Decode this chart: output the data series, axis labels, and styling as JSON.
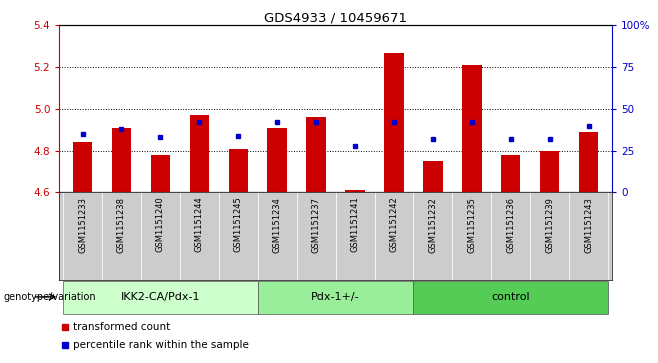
{
  "title": "GDS4933 / 10459671",
  "samples": [
    "GSM1151233",
    "GSM1151238",
    "GSM1151240",
    "GSM1151244",
    "GSM1151245",
    "GSM1151234",
    "GSM1151237",
    "GSM1151241",
    "GSM1151242",
    "GSM1151232",
    "GSM1151235",
    "GSM1151236",
    "GSM1151239",
    "GSM1151243"
  ],
  "red_values": [
    4.84,
    4.91,
    4.78,
    4.97,
    4.81,
    4.91,
    4.96,
    4.61,
    5.27,
    4.75,
    5.21,
    4.78,
    4.8,
    4.89
  ],
  "blue_values_pct": [
    35,
    38,
    33,
    42,
    34,
    42,
    42,
    28,
    42,
    32,
    42,
    32,
    32,
    40
  ],
  "ymin": 4.6,
  "ymax": 5.4,
  "y_ticks_left": [
    4.6,
    4.8,
    5.0,
    5.2,
    5.4
  ],
  "y_ticks_right": [
    0,
    25,
    50,
    75,
    100
  ],
  "bar_color": "#cc0000",
  "blue_color": "#0000cc",
  "bar_width": 0.5,
  "tick_bg_color": "#cccccc",
  "red_axis_color": "#cc0000",
  "blue_axis_color": "#0000cc",
  "legend_red": "transformed count",
  "legend_blue": "percentile rank within the sample",
  "group_label": "genotype/variation",
  "dotted_lines": [
    4.8,
    5.0,
    5.2
  ],
  "group_starts": [
    0,
    5,
    9
  ],
  "group_ends": [
    5,
    9,
    14
  ],
  "group_labels": [
    "IKK2-CA/Pdx-1",
    "Pdx-1+/-",
    "control"
  ],
  "group_colors": [
    "#ccffcc",
    "#99ee99",
    "#55cc55"
  ]
}
